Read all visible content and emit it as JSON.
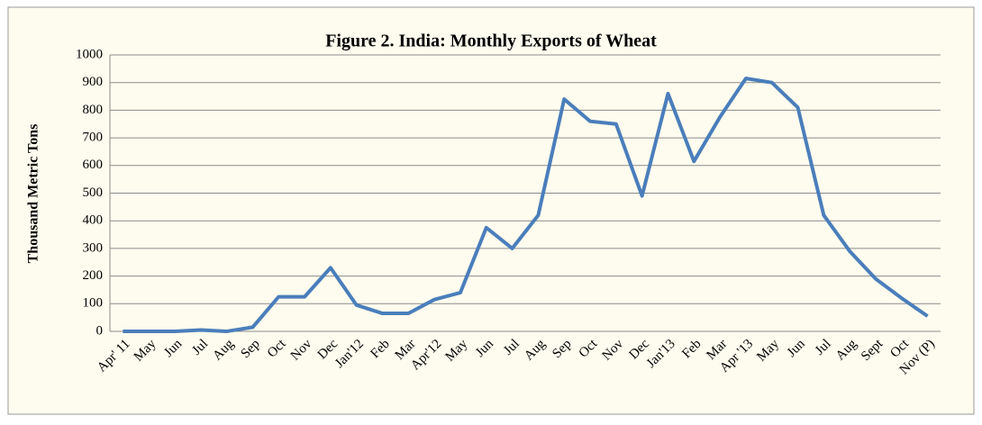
{
  "chart_data": {
    "type": "line",
    "title": "Figure 2. India:  Monthly Exports of Wheat",
    "y_label": "Thousand  Metric  Tons",
    "categories": [
      "Apr' 11",
      "May",
      "Jun",
      "Jul",
      "Aug",
      "Sep",
      "Oct",
      "Nov",
      "Dec",
      "Jan'12",
      "Feb",
      "Mar",
      "Apr'12",
      "May",
      "Jun",
      "Jul",
      "Aug",
      "Sep",
      "Oct",
      "Nov",
      "Dec",
      "Jan'13",
      "Feb",
      "Mar",
      "Apr '13",
      "May",
      "Jun",
      "Jul",
      "Aug",
      "Sept",
      "Oct",
      "Nov (P)"
    ],
    "series": [
      {
        "color": "#4a7ebb",
        "values": [
          0,
          0,
          0,
          5,
          0,
          15,
          125,
          125,
          230,
          95,
          65,
          65,
          115,
          140,
          375,
          300,
          420,
          840,
          760,
          750,
          490,
          860,
          615,
          775,
          915,
          900,
          810,
          420,
          290,
          190,
          120,
          55
        ]
      }
    ],
    "ylim": [
      0,
      1000
    ],
    "yticks": [
      0,
      100,
      200,
      300,
      400,
      500,
      600,
      700,
      800,
      900,
      1000
    ],
    "grid": true
  }
}
